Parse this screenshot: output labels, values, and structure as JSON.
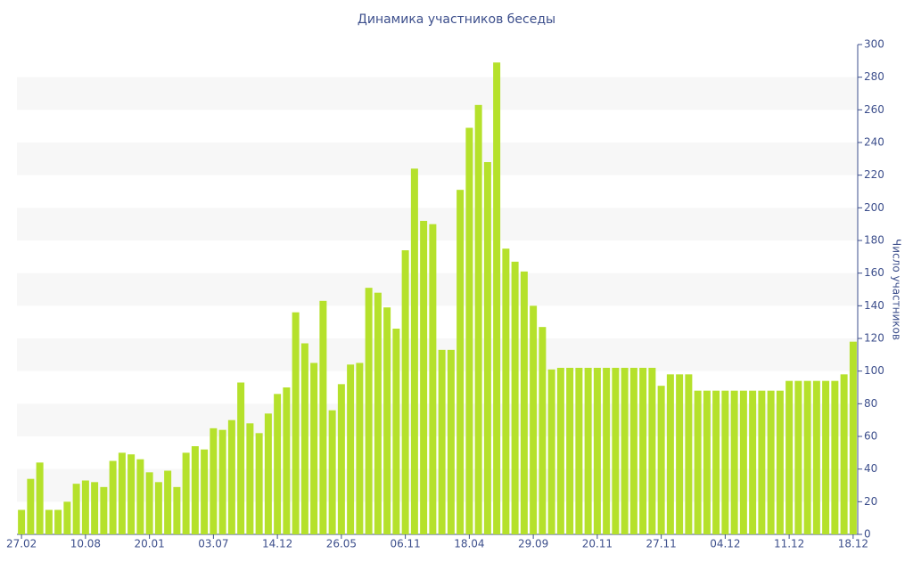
{
  "chart_data": {
    "type": "bar",
    "title": "Динамика участников беседы",
    "y_label": "Число участников",
    "categories": [
      "27.02",
      null,
      null,
      null,
      null,
      null,
      null,
      "10.08",
      null,
      null,
      null,
      null,
      null,
      null,
      "20.01",
      null,
      null,
      null,
      null,
      null,
      null,
      "03.07",
      null,
      null,
      null,
      null,
      null,
      null,
      "14.12",
      null,
      null,
      null,
      null,
      null,
      null,
      "26.05",
      null,
      null,
      null,
      null,
      null,
      null,
      "06.11",
      null,
      null,
      null,
      null,
      null,
      null,
      "18.04",
      null,
      null,
      null,
      null,
      null,
      null,
      "29.09",
      null,
      null,
      null,
      null,
      null,
      null,
      "20.11",
      null,
      null,
      null,
      null,
      null,
      null,
      "27.11",
      null,
      null,
      null,
      null,
      null,
      null,
      "04.12",
      null,
      null,
      null,
      null,
      null,
      null,
      "11.12",
      null,
      null,
      null,
      null,
      null,
      null,
      "18.12"
    ],
    "values": [
      15,
      34,
      44,
      15,
      15,
      20,
      31,
      33,
      32,
      29,
      45,
      50,
      49,
      46,
      38,
      32,
      39,
      29,
      50,
      54,
      52,
      65,
      64,
      70,
      93,
      68,
      62,
      74,
      86,
      90,
      136,
      117,
      105,
      143,
      76,
      92,
      104,
      105,
      151,
      148,
      139,
      126,
      174,
      224,
      192,
      190,
      113,
      113,
      211,
      249,
      263,
      228,
      289,
      175,
      167,
      161,
      140,
      127,
      101,
      102,
      102,
      102,
      102,
      102,
      102,
      102,
      102,
      102,
      102,
      102,
      91,
      98,
      98,
      98,
      88,
      88,
      88,
      88,
      88,
      88,
      88,
      88,
      88,
      88,
      94,
      94,
      94,
      94,
      94,
      94,
      98,
      118
    ],
    "color": "#b5e12b",
    "ylim": [
      0,
      300
    ],
    "yticks": [
      0,
      20,
      40,
      60,
      80,
      100,
      120,
      140,
      160,
      180,
      200,
      220,
      240,
      260,
      280,
      300
    ],
    "y_axis_side": "right",
    "grid": true
  }
}
